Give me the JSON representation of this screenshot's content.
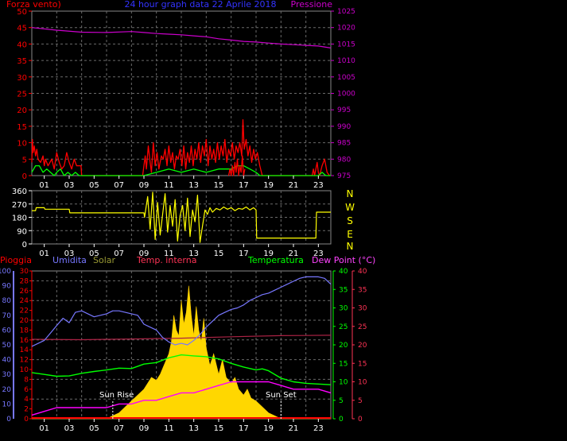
{
  "header": {
    "left_label": "Forza vento)",
    "title": "24 hour graph data   22 Aprile 2018",
    "right_label": "Pressione"
  },
  "colors": {
    "wind": "#ff0000",
    "gust": "#ff0000",
    "avg_wind": "#00ff00",
    "pressure": "#cc00cc",
    "direction": "#ffff00",
    "humidity": "#7777ff",
    "solar": "#ffd700",
    "indoor_temp": "#aa2244",
    "temperature": "#00ff00",
    "dewpoint": "#ff00ff",
    "rain": "#ff0000",
    "grid": "#6a6a6a",
    "axis_text": "#ffffff",
    "header_title": "#3333ff"
  },
  "chart_data": [
    {
      "id": "wind",
      "type": "line",
      "title": "24 hour graph data   22 Aprile 2018",
      "x_ticks": [
        "01",
        "03",
        "05",
        "07",
        "09",
        "11",
        "13",
        "15",
        "17",
        "19",
        "21",
        "23"
      ],
      "left_axis": {
        "label": "Forza vento)",
        "ylim": [
          0,
          50
        ],
        "ticks": [
          0,
          5,
          10,
          15,
          20,
          25,
          30,
          35,
          40,
          45,
          50
        ]
      },
      "right_axis": {
        "label": "Pressione",
        "ylim": [
          975,
          1025
        ],
        "ticks": [
          975,
          980,
          985,
          990,
          995,
          1000,
          1005,
          1010,
          1015,
          1020,
          1025
        ]
      },
      "series": [
        {
          "key": "pressure",
          "axis": "right",
          "x": [
            0,
            2,
            4,
            6,
            8,
            9,
            10,
            11,
            12,
            13,
            14,
            15,
            16,
            17,
            18,
            19,
            20,
            21,
            22,
            23,
            24
          ],
          "values": [
            1020.0,
            1019.2,
            1018.6,
            1018.5,
            1018.8,
            1018.5,
            1018.2,
            1018.0,
            1017.8,
            1017.5,
            1017.2,
            1016.6,
            1016.2,
            1015.8,
            1015.6,
            1015.3,
            1015.0,
            1014.8,
            1014.6,
            1014.4,
            1013.8
          ]
        },
        {
          "key": "wind",
          "axis": "left",
          "x": [
            0.0,
            0.05,
            0.1,
            0.2,
            0.3,
            0.4,
            0.5,
            0.7,
            0.9,
            1.0,
            1.1,
            1.3,
            1.6,
            1.8,
            2.0,
            2.2,
            2.4,
            2.6,
            2.8,
            3.0,
            3.2,
            3.4,
            3.6,
            3.8,
            3.95,
            4.0,
            8.9,
            9.0,
            9.1,
            9.2,
            9.35,
            9.5,
            9.6,
            9.75,
            9.9,
            10.05,
            10.2,
            10.4,
            10.55,
            10.7,
            10.85,
            11.0,
            11.15,
            11.3,
            11.45,
            11.6,
            11.75,
            11.9,
            12.05,
            12.2,
            12.35,
            12.5,
            12.65,
            12.8,
            12.95,
            13.1,
            13.25,
            13.4,
            13.55,
            13.7,
            13.85,
            14.0,
            14.15,
            14.3,
            14.45,
            14.6,
            14.75,
            14.9,
            15.05,
            15.2,
            15.35,
            15.5,
            15.65,
            15.8,
            15.95,
            16.1,
            16.25,
            16.4,
            16.55,
            16.7,
            16.85,
            16.95,
            17.05,
            17.2,
            17.35,
            17.5,
            17.65,
            17.8,
            17.95,
            18.1,
            18.3,
            18.5,
            22.5,
            22.6,
            22.7,
            22.9,
            23.0,
            23.1,
            23.3,
            23.5,
            23.7,
            23.9
          ],
          "values": [
            4,
            11,
            7,
            9,
            6,
            8,
            5,
            4,
            6,
            3,
            5,
            3,
            5,
            2,
            7,
            4,
            2,
            3,
            7,
            4,
            2,
            5,
            3,
            3,
            3,
            0,
            0,
            3,
            6,
            2,
            9,
            4,
            1,
            10,
            3,
            7,
            2,
            6,
            5,
            8,
            3,
            9,
            4,
            7,
            2,
            6,
            5,
            8,
            3,
            9,
            2,
            7,
            4,
            9,
            3,
            8,
            5,
            10,
            4,
            9,
            6,
            11,
            3,
            9,
            5,
            8,
            4,
            10,
            5,
            9,
            6,
            11,
            4,
            8,
            6,
            10,
            5,
            9,
            7,
            10,
            6,
            17,
            8,
            11,
            6,
            9,
            4,
            8,
            5,
            7,
            3,
            0,
            0,
            2,
            0,
            4,
            1,
            0,
            3,
            5,
            1,
            0
          ]
        },
        {
          "key": "avg_wind",
          "axis": "left",
          "x": [
            0,
            0.3,
            0.6,
            0.9,
            1.2,
            1.5,
            1.8,
            2.0,
            2.3,
            2.6,
            2.9,
            3.2,
            3.5,
            3.8,
            4.0,
            9.0,
            10,
            11,
            12,
            13,
            14,
            15,
            16,
            16.5,
            17,
            17.5,
            18,
            18.3,
            18.5,
            23.0,
            23.3,
            23.6,
            24
          ],
          "values": [
            1,
            3,
            3,
            1,
            2,
            1,
            0,
            1,
            2,
            0,
            1,
            0,
            1,
            0,
            0,
            0,
            1,
            2,
            1,
            2,
            1,
            2,
            2,
            3,
            3,
            2,
            1,
            0,
            0,
            0,
            1,
            0,
            0
          ]
        },
        {
          "key": "gust",
          "axis": "left",
          "x": [
            15.8,
            15.9,
            16.0,
            16.1,
            16.2,
            16.3,
            16.4,
            16.5,
            16.6,
            16.7,
            16.8,
            16.9,
            17.0,
            17.1
          ],
          "values": [
            0,
            2,
            0,
            3,
            0,
            4,
            1,
            5,
            0,
            3,
            1,
            6,
            0,
            2
          ]
        }
      ]
    },
    {
      "id": "direction",
      "type": "line",
      "x_ticks": [
        "01",
        "03",
        "05",
        "07",
        "09",
        "11",
        "13",
        "15",
        "17",
        "19",
        "21",
        "23"
      ],
      "left_axis": {
        "ylim": [
          0,
          360
        ],
        "ticks": [
          0,
          90,
          180,
          270,
          360
        ]
      },
      "right_axis": {
        "labels": [
          "N",
          "W",
          "S",
          "E",
          "N"
        ]
      },
      "series": [
        {
          "key": "direction",
          "axis": "left",
          "x": [
            0,
            0.3,
            0.35,
            1.0,
            1.05,
            3.0,
            3.05,
            9.0,
            9.05,
            9.3,
            9.5,
            9.7,
            9.9,
            10.1,
            10.3,
            10.5,
            10.7,
            10.9,
            11.1,
            11.3,
            11.5,
            11.7,
            11.9,
            12.1,
            12.3,
            12.5,
            12.7,
            12.9,
            13.1,
            13.3,
            13.5,
            13.7,
            13.9,
            14.1,
            14.3,
            14.5,
            14.8,
            15.1,
            15.4,
            15.7,
            16.0,
            16.3,
            16.6,
            16.9,
            17.2,
            17.5,
            17.8,
            18.0,
            18.05,
            22.8,
            22.85,
            24
          ],
          "values": [
            225,
            225,
            245,
            245,
            235,
            235,
            210,
            210,
            180,
            320,
            100,
            350,
            30,
            280,
            60,
            200,
            340,
            80,
            260,
            120,
            300,
            20,
            190,
            260,
            90,
            310,
            50,
            230,
            150,
            330,
            10,
            120,
            230,
            200,
            245,
            215,
            240,
            230,
            250,
            235,
            245,
            225,
            240,
            235,
            250,
            230,
            245,
            230,
            40,
            40,
            215,
            215
          ]
        }
      ]
    },
    {
      "id": "climate",
      "type": "line",
      "x_ticks": [
        "01",
        "03",
        "05",
        "07",
        "09",
        "11",
        "13",
        "15",
        "17",
        "19",
        "21",
        "23"
      ],
      "axes": [
        {
          "label": "Pioggia",
          "ylim": [
            0,
            100
          ],
          "ticks": [
            0,
            10,
            20,
            30,
            40,
            50,
            60,
            70,
            80,
            90,
            100
          ]
        },
        {
          "label": "Umidita",
          "ylim": [
            0,
            30
          ],
          "ticks": [
            0,
            2,
            4,
            6,
            8,
            10,
            12,
            14,
            16,
            18,
            20,
            22,
            24,
            26,
            28,
            30
          ]
        },
        {
          "label": "Solar"
        },
        {
          "label": "Temp. interna"
        },
        {
          "label": "Temperatura",
          "ylim": [
            0,
            40
          ],
          "ticks": [
            0,
            5,
            10,
            15,
            20,
            25,
            30,
            35,
            40
          ]
        },
        {
          "label": "Dew Point (°C)",
          "ylim": [
            0,
            40
          ],
          "ticks": [
            0,
            5,
            10,
            15,
            20,
            25,
            30,
            35,
            40
          ]
        }
      ],
      "annotations": [
        {
          "text": "Sun Rise",
          "x": 6.5
        },
        {
          "text": "Sun Set",
          "x": 20.0
        }
      ],
      "series": [
        {
          "key": "humidity",
          "x": [
            0,
            1,
            1.5,
            2,
            2.5,
            3,
            3.5,
            4,
            4.5,
            5,
            5.5,
            6,
            6.5,
            7,
            7.5,
            8,
            8.5,
            9,
            9.5,
            10,
            10.5,
            11,
            11.5,
            12,
            12.5,
            13,
            13.5,
            14,
            14.5,
            15,
            15.5,
            16,
            16.5,
            17,
            17.5,
            18,
            18.5,
            19,
            19.5,
            20,
            20.5,
            21,
            21.5,
            22,
            22.5,
            23,
            23.5,
            24
          ],
          "values": [
            49,
            53,
            58,
            63,
            68,
            65,
            72,
            73,
            71,
            69,
            70,
            71,
            73,
            73,
            72,
            71,
            70,
            64,
            62,
            60,
            55,
            52,
            50,
            51,
            50,
            53,
            57,
            62,
            66,
            70,
            72,
            74,
            75,
            77,
            80,
            82,
            84,
            85,
            87,
            89,
            91,
            93,
            95,
            96,
            96,
            96,
            95,
            91
          ]
        },
        {
          "key": "solar",
          "x": [
            0,
            6.0,
            6.5,
            7,
            7.5,
            8,
            8.5,
            9,
            9.3,
            9.6,
            10,
            10.3,
            10.6,
            11,
            11.2,
            11.4,
            11.6,
            11.8,
            12,
            12.2,
            12.4,
            12.6,
            12.8,
            13,
            13.2,
            13.4,
            13.6,
            13.8,
            14,
            14.3,
            14.6,
            15,
            15.3,
            15.6,
            16,
            16.3,
            16.6,
            17,
            17.3,
            17.6,
            18,
            18.5,
            19,
            19.5,
            20,
            24
          ],
          "values": [
            0,
            0,
            1,
            2,
            4,
            6,
            8,
            10,
            12,
            14,
            13,
            15,
            18,
            22,
            26,
            35,
            30,
            28,
            40,
            32,
            36,
            45,
            35,
            28,
            38,
            30,
            26,
            34,
            24,
            18,
            22,
            15,
            20,
            14,
            12,
            14,
            10,
            8,
            10,
            7,
            6,
            4,
            2,
            1,
            0,
            0
          ]
        },
        {
          "key": "indoor_temp",
          "x": [
            0,
            4,
            8,
            12,
            16,
            20,
            24
          ],
          "values": [
            21.5,
            21.4,
            21.6,
            21.8,
            22.2,
            22.5,
            22.6
          ]
        },
        {
          "key": "rain",
          "x": [
            0,
            24
          ],
          "values": [
            0,
            0
          ]
        },
        {
          "key": "temperature",
          "x": [
            0,
            1,
            2,
            3,
            4,
            5,
            6,
            7,
            8,
            9,
            10,
            11,
            12,
            13,
            14,
            15,
            16,
            17,
            18,
            18.5,
            19,
            20,
            21,
            22,
            23,
            24
          ],
          "values": [
            12.5,
            12.0,
            11.5,
            11.6,
            12.3,
            12.8,
            13.2,
            13.7,
            13.6,
            14.8,
            15.2,
            16.5,
            17.3,
            17.0,
            16.8,
            16.2,
            15.0,
            14.0,
            13.2,
            13.5,
            13.0,
            11.0,
            10.0,
            9.6,
            9.4,
            9.2
          ]
        },
        {
          "key": "dewpoint",
          "x": [
            0,
            1,
            2,
            3,
            4,
            5,
            6,
            7,
            8,
            9,
            10,
            11,
            12,
            13,
            14,
            15,
            16,
            17,
            18,
            19,
            20,
            21,
            22,
            23,
            24
          ],
          "values": [
            1.0,
            2.0,
            3.0,
            3.0,
            3.0,
            3.0,
            3.0,
            4.0,
            4.0,
            5.0,
            5.0,
            6.0,
            7.0,
            7.0,
            8.0,
            9.0,
            10.0,
            10.0,
            10.0,
            10.0,
            9.0,
            8.0,
            8.0,
            8.0,
            7.0
          ]
        }
      ]
    }
  ]
}
